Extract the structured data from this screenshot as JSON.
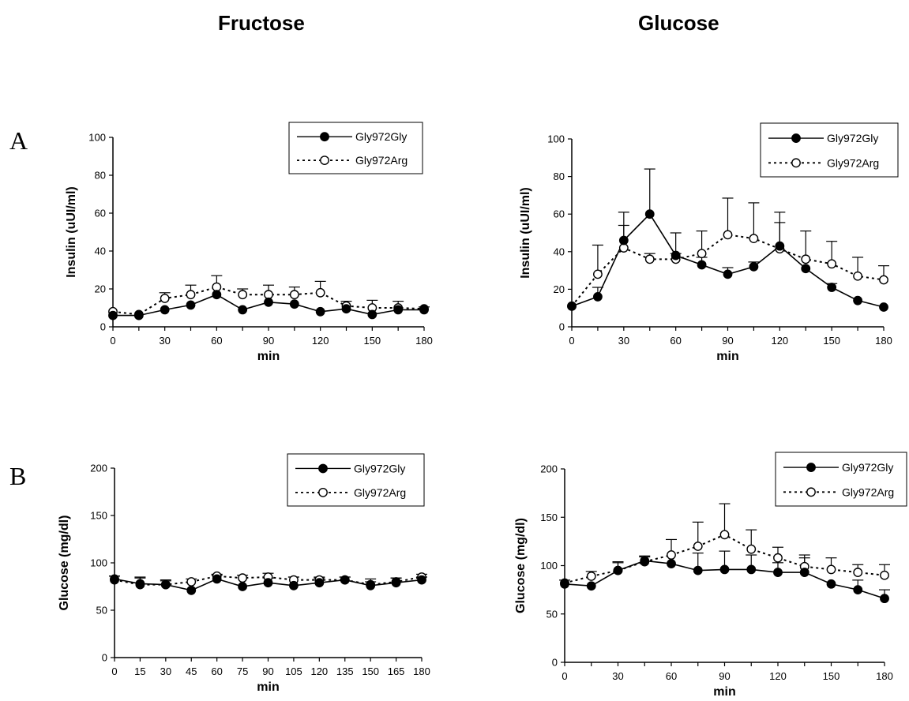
{
  "column_titles": [
    "Fructose",
    "Glucose"
  ],
  "row_labels": [
    "A",
    "B"
  ],
  "legend": {
    "series_names": [
      "Gly972Gly",
      "Gly972Arg"
    ]
  },
  "chart_data": [
    {
      "type": "line",
      "column_title": "Fructose",
      "row_label": "A",
      "xlabel": "min",
      "ylabel": "Insulin (uUI/ml)",
      "xlim": [
        0,
        180
      ],
      "ylim": [
        0,
        100
      ],
      "xticks": [
        0,
        30,
        60,
        90,
        120,
        150,
        180
      ],
      "yticks": [
        0,
        20,
        40,
        60,
        80,
        100
      ],
      "legend_position": "top-right",
      "x": [
        0,
        15,
        30,
        45,
        60,
        75,
        90,
        105,
        120,
        135,
        150,
        165,
        180
      ],
      "series": [
        {
          "name": "Gly972Gly",
          "marker": "filled",
          "line": "solid",
          "values": [
            6,
            6,
            9,
            11.5,
            17,
            9,
            13,
            12,
            8,
            9.5,
            6.5,
            9,
            9
          ],
          "errors": [
            0,
            0,
            0,
            0,
            0,
            0,
            0,
            0,
            0,
            0,
            0,
            0,
            0
          ]
        },
        {
          "name": "Gly972Arg",
          "marker": "open",
          "line": "dotted",
          "values": [
            8,
            6.5,
            15,
            17,
            21,
            17,
            17,
            17,
            18,
            11,
            10,
            10,
            9.5
          ],
          "errors": [
            0,
            0,
            3,
            5,
            6,
            3,
            5,
            4,
            6,
            2.5,
            4,
            3.5,
            1
          ]
        }
      ]
    },
    {
      "type": "line",
      "column_title": "Glucose",
      "row_label": "A",
      "xlabel": "min",
      "ylabel": "Insulin (uUI/ml)",
      "xlim": [
        0,
        180
      ],
      "ylim": [
        0,
        100
      ],
      "xticks": [
        0,
        30,
        60,
        90,
        120,
        150,
        180
      ],
      "yticks": [
        0,
        20,
        40,
        60,
        80,
        100
      ],
      "legend_position": "top-right",
      "x": [
        0,
        15,
        30,
        45,
        60,
        75,
        90,
        105,
        120,
        135,
        150,
        165,
        180
      ],
      "series": [
        {
          "name": "Gly972Gly",
          "marker": "filled",
          "line": "solid",
          "values": [
            11,
            16,
            46,
            60,
            38,
            33,
            28,
            32,
            43,
            31,
            21,
            14,
            10.5
          ],
          "errors": [
            0,
            5,
            15,
            24,
            12,
            4,
            3.5,
            2.5,
            18,
            0,
            2,
            0,
            0
          ]
        },
        {
          "name": "Gly972Arg",
          "marker": "open",
          "line": "dotted",
          "values": [
            11,
            28,
            42,
            36,
            36,
            39,
            49,
            47,
            41.5,
            36,
            33.5,
            27,
            25
          ],
          "errors": [
            0,
            15.5,
            12,
            3,
            3,
            12,
            19.5,
            19,
            14,
            15,
            12,
            10,
            7.5
          ]
        }
      ]
    },
    {
      "type": "line",
      "column_title": "Fructose",
      "row_label": "B",
      "xlabel": "min",
      "ylabel": "Glucose (mg/dl)",
      "xlim": [
        0,
        180
      ],
      "ylim": [
        0,
        200
      ],
      "xticks": [
        0,
        15,
        30,
        45,
        60,
        75,
        90,
        105,
        120,
        135,
        150,
        165,
        180
      ],
      "yticks": [
        0,
        50,
        100,
        150,
        200
      ],
      "legend_position": "top-right",
      "x": [
        0,
        15,
        30,
        45,
        60,
        75,
        90,
        105,
        120,
        135,
        150,
        165,
        180
      ],
      "series": [
        {
          "name": "Gly972Gly",
          "marker": "filled",
          "line": "solid",
          "values": [
            83,
            78,
            77,
            71,
            83,
            75,
            79,
            76,
            79,
            82,
            76,
            79,
            82
          ],
          "errors": [
            3,
            6,
            4,
            0,
            4,
            0,
            5,
            9,
            5,
            3,
            4,
            5,
            3
          ]
        },
        {
          "name": "Gly972Arg",
          "marker": "open",
          "line": "dotted",
          "values": [
            82,
            77,
            77,
            80,
            86,
            84,
            85,
            82,
            82,
            82,
            77,
            80,
            85
          ],
          "errors": [
            4,
            8,
            5,
            3,
            2,
            3,
            4,
            3,
            3,
            3,
            6,
            4,
            3
          ]
        }
      ]
    },
    {
      "type": "line",
      "column_title": "Glucose",
      "row_label": "B",
      "xlabel": "min",
      "ylabel": "Glucose (mg/dl)",
      "xlim": [
        0,
        180
      ],
      "ylim": [
        0,
        200
      ],
      "xticks": [
        0,
        30,
        60,
        90,
        120,
        150,
        180
      ],
      "yticks": [
        0,
        50,
        100,
        150,
        200
      ],
      "legend_position": "top-right",
      "x": [
        0,
        15,
        30,
        45,
        60,
        75,
        90,
        105,
        120,
        135,
        150,
        165,
        180
      ],
      "series": [
        {
          "name": "Gly972Gly",
          "marker": "filled",
          "line": "solid",
          "values": [
            81,
            79,
            95,
            105,
            102,
            95,
            96,
            96,
            93,
            93,
            81,
            75,
            66
          ],
          "errors": [
            0,
            0,
            8,
            5,
            0,
            18,
            19,
            15,
            10,
            15,
            0,
            10,
            9
          ]
        },
        {
          "name": "Gly972Arg",
          "marker": "open",
          "line": "dotted",
          "values": [
            82,
            89,
            95,
            104,
            111,
            120,
            132,
            117,
            108,
            99,
            96,
            93,
            90
          ],
          "errors": [
            3,
            5,
            9,
            5,
            16,
            25,
            32,
            20,
            11,
            12,
            12,
            8,
            11
          ]
        }
      ]
    }
  ]
}
